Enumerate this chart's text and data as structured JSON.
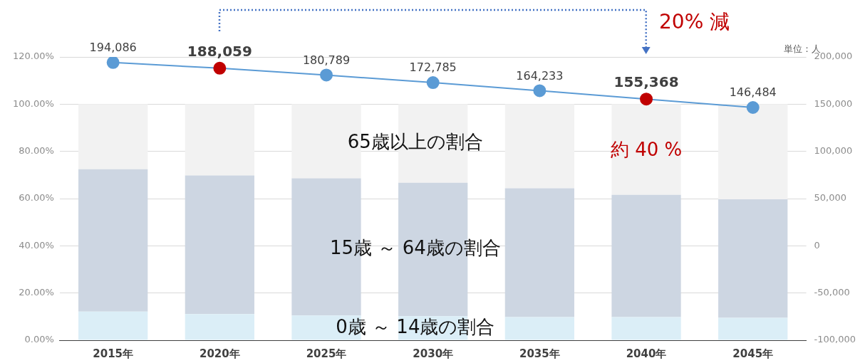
{
  "chart_data": {
    "type": "bar",
    "categories": [
      "2015年",
      "2020年",
      "2025年",
      "2030年",
      "2035年",
      "2040年",
      "2045年"
    ],
    "stacked": true,
    "grid": "y",
    "legend": false,
    "marker": "circle",
    "ylim": [
      0,
      120
    ],
    "yticks": [
      {
        "value": 0,
        "label": "0.00%"
      },
      {
        "value": 20,
        "label": "20.00%"
      },
      {
        "value": 40,
        "label": "40.00%"
      },
      {
        "value": 60,
        "label": "60.00%"
      },
      {
        "value": 80,
        "label": "80.00%"
      },
      {
        "value": 100,
        "label": "100.00%"
      },
      {
        "value": 120,
        "label": "120.00%"
      }
    ],
    "y2lim": [
      -100000,
      200000
    ],
    "y2ticks": [
      {
        "value": -100000,
        "label": "-100,000"
      },
      {
        "value": -50000,
        "label": "-50,000"
      },
      {
        "value": 0,
        "label": "0"
      },
      {
        "value": 50000,
        "label": "50,000"
      },
      {
        "value": 100000,
        "label": "100,000"
      },
      {
        "value": 150000,
        "label": "150,000"
      },
      {
        "value": 200000,
        "label": "200,000"
      }
    ],
    "y2label": "単位：人",
    "series": [
      {
        "name": "0歳 ～ 14歳の割合",
        "color": "#dbeef7",
        "values": [
          12.1,
          11.1,
          10.5,
          10.2,
          9.8,
          9.8,
          9.5
        ]
      },
      {
        "name": "15歳 ～ 64歳の割合",
        "color": "#cdd6e2",
        "values": [
          60.3,
          58.7,
          58.1,
          56.5,
          54.6,
          51.8,
          50.2
        ]
      },
      {
        "name": "65歳以上の割合",
        "color": "#f2f2f2",
        "values": [
          27.6,
          30.2,
          31.4,
          33.3,
          35.6,
          38.4,
          40.3
        ]
      },
      {
        "type": "line",
        "axis": "y2",
        "color": "#5b9bd5",
        "colors": [
          "#5b9bd5",
          "#c00000",
          "#5b9bd5",
          "#5b9bd5",
          "#5b9bd5",
          "#c00000",
          "#5b9bd5"
        ],
        "values": [
          194086,
          188059,
          180789,
          172785,
          164233,
          155368,
          146484
        ],
        "value_labels": [
          "194,086",
          "188,059",
          "180,789",
          "172,785",
          "164,233",
          "155,368",
          "146,484"
        ]
      }
    ],
    "annotations": [
      "20% 減",
      "約 40 %"
    ]
  }
}
